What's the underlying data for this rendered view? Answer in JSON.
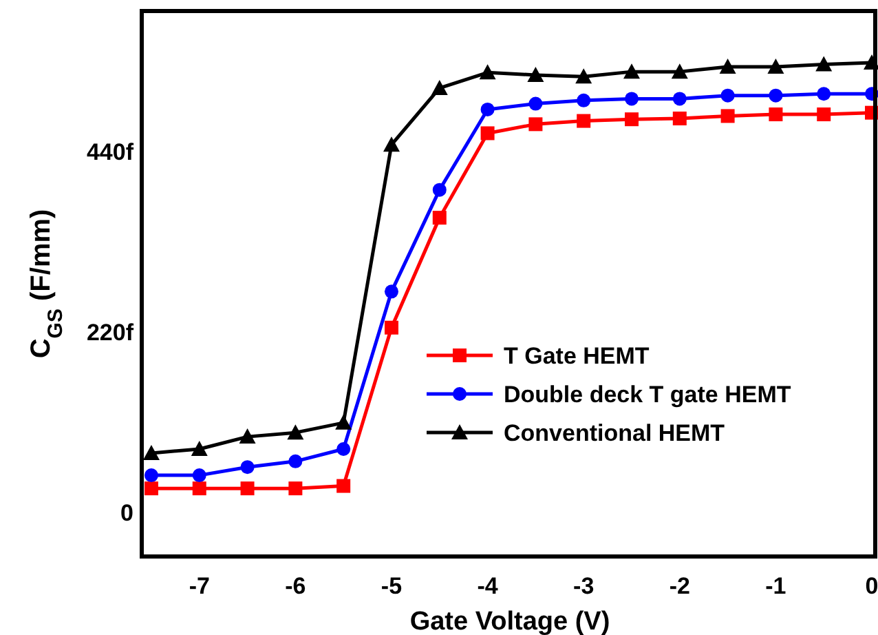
{
  "chart_data": {
    "type": "line",
    "xlabel": "Gate Voltage (V)",
    "ylabel": "C$_{GS}$ (F/mm)",
    "x": [
      -7.5,
      -7,
      -6.5,
      -6,
      -5.5,
      -5,
      -4.5,
      -4,
      -3.5,
      -3,
      -2.5,
      -2,
      -1.5,
      -1,
      -0.5,
      0
    ],
    "series": [
      {
        "name": "T Gate HEMT",
        "color": "#ff0000",
        "marker": "square",
        "values": [
          29,
          29,
          29,
          29,
          32,
          225,
          359,
          462,
          473,
          477,
          479,
          480,
          483,
          485,
          485,
          487
        ]
      },
      {
        "name": "Double deck T gate HEMT",
        "color": "#0000ff",
        "marker": "circle",
        "values": [
          45,
          45,
          55,
          62,
          77,
          269,
          393,
          491,
          498,
          502,
          504,
          504,
          508,
          508,
          510,
          510
        ]
      },
      {
        "name": "Conventional HEMT",
        "color": "#000000",
        "marker": "triangle",
        "values": [
          72,
          77,
          92,
          97,
          109,
          448,
          517,
          536,
          533,
          531,
          537,
          537,
          543,
          543,
          546,
          548
        ]
      }
    ],
    "xlim": [
      -7.6,
      0.05
    ],
    "xticks": [
      -7,
      -6,
      -5,
      -4,
      -3,
      -2,
      -1,
      0
    ],
    "ylim": [
      -54,
      611
    ],
    "yticks": [
      0,
      {
        "value": 220,
        "label": "220f"
      },
      {
        "value": 440,
        "label": "440f"
      }
    ],
    "legend": "right",
    "grid": false
  }
}
